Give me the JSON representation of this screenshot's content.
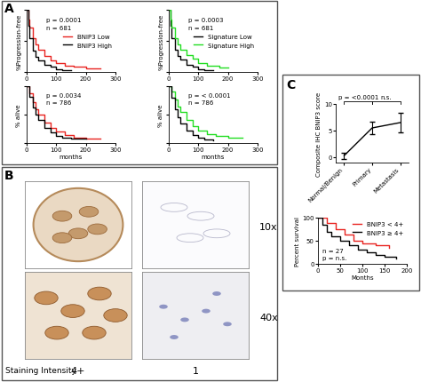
{
  "panel_labels": [
    "A",
    "B",
    "C"
  ],
  "images": {
    "magnifications": [
      "10x",
      "40x"
    ],
    "staining_label": "Staining Intensity",
    "intensities": [
      "4+",
      "1"
    ]
  },
  "chart_data": [
    {
      "type": "line",
      "ylabel": "%Progression-free",
      "annotations": [
        "p = 0.0001",
        "n = 681"
      ],
      "xlim": [
        0,
        300
      ],
      "xticks": [
        0,
        100,
        200,
        300
      ],
      "ylim": [
        0,
        100
      ],
      "yticks": [
        0,
        50,
        100
      ],
      "tick_labels": "x",
      "legend": "center right",
      "series": [
        {
          "name": "BNIP3 Low",
          "color": "#e8231f",
          "line_style": "steps",
          "x": [
            0,
            5,
            10,
            20,
            30,
            40,
            60,
            80,
            100,
            130,
            160,
            200,
            250
          ],
          "values": [
            100,
            85,
            72,
            55,
            44,
            36,
            26,
            19,
            14,
            10,
            8,
            6,
            6
          ]
        },
        {
          "name": "BNIP3 High",
          "color": "#000000",
          "line_style": "steps",
          "x": [
            0,
            5,
            10,
            20,
            30,
            40,
            60,
            80,
            100,
            120,
            150
          ],
          "values": [
            100,
            75,
            55,
            35,
            25,
            19,
            12,
            8,
            5,
            3,
            3
          ]
        }
      ]
    },
    {
      "type": "line",
      "ylabel": "%Progression-free",
      "annotations": [
        "p = 0.0003",
        "n = 681"
      ],
      "xlim": [
        0,
        300
      ],
      "xticks": [
        0,
        100,
        200,
        300
      ],
      "ylim": [
        0,
        100
      ],
      "yticks": [
        0,
        50,
        100
      ],
      "tick_labels": "x",
      "legend": "center right",
      "series": [
        {
          "name": "Signature Low",
          "color": "#000000",
          "line_style": "steps",
          "x": [
            0,
            5,
            10,
            20,
            30,
            40,
            60,
            80,
            100,
            120,
            150
          ],
          "values": [
            100,
            75,
            55,
            36,
            26,
            20,
            12,
            8,
            5,
            3,
            3
          ]
        },
        {
          "name": "Signature High",
          "color": "#22dd22",
          "line_style": "steps",
          "x": [
            0,
            5,
            10,
            20,
            30,
            40,
            60,
            80,
            100,
            130,
            170,
            200
          ],
          "values": [
            100,
            85,
            72,
            55,
            44,
            36,
            27,
            21,
            15,
            10,
            7,
            7
          ]
        }
      ]
    },
    {
      "type": "line",
      "ylabel": "% alive",
      "xlabel": "months",
      "annotations": [
        "p = 0.0034",
        "n = 786"
      ],
      "xlim": [
        0,
        300
      ],
      "xticks": [
        0,
        100,
        200,
        300
      ],
      "ylim": [
        0,
        100
      ],
      "yticks": [
        0,
        50,
        100
      ],
      "tick_labels": "x",
      "series": [
        {
          "color": "#e8231f",
          "line_style": "steps",
          "x": [
            0,
            10,
            20,
            30,
            40,
            60,
            80,
            100,
            130,
            160,
            200,
            250
          ],
          "values": [
            100,
            88,
            72,
            60,
            50,
            36,
            27,
            20,
            14,
            10,
            8,
            8
          ]
        },
        {
          "color": "#000000",
          "line_style": "steps",
          "x": [
            0,
            10,
            20,
            30,
            40,
            60,
            80,
            100,
            120,
            150,
            200
          ],
          "values": [
            100,
            82,
            63,
            50,
            40,
            27,
            19,
            13,
            10,
            8,
            8
          ]
        }
      ]
    },
    {
      "type": "line",
      "ylabel": "% alive",
      "xlabel": "months",
      "annotations": [
        "p = < 0.0001",
        "n = 786"
      ],
      "xlim": [
        0,
        300
      ],
      "xticks": [
        0,
        100,
        200,
        300
      ],
      "ylim": [
        0,
        100
      ],
      "yticks": [
        0,
        50,
        100
      ],
      "tick_labels": "x",
      "series": [
        {
          "color": "#22dd22",
          "line_style": "steps",
          "x": [
            0,
            10,
            20,
            30,
            40,
            60,
            80,
            100,
            130,
            160,
            200,
            250
          ],
          "values": [
            100,
            90,
            76,
            64,
            54,
            40,
            30,
            22,
            16,
            12,
            9,
            9
          ]
        },
        {
          "color": "#000000",
          "line_style": "steps",
          "x": [
            0,
            10,
            20,
            30,
            40,
            60,
            80,
            100,
            120,
            150
          ],
          "values": [
            100,
            80,
            60,
            45,
            35,
            22,
            14,
            9,
            6,
            5
          ]
        }
      ]
    },
    {
      "type": "errorbar",
      "ylabel": "Composite IHC BNIP3 score",
      "categories": [
        "Normal/Benign",
        "Primary",
        "Metastasis"
      ],
      "values": [
        0.3,
        5.5,
        6.5
      ],
      "errors": [
        0.6,
        1.2,
        1.8
      ],
      "color": "#000000",
      "annotations": [
        "p = <0.0001",
        "n.s."
      ],
      "ylim": [
        -1,
        10
      ],
      "yticks": [
        0,
        5,
        10
      ]
    },
    {
      "type": "line",
      "ylabel": "Percent survival",
      "xlabel": "Months",
      "annotations": [
        "n = 27",
        "p = n.s."
      ],
      "xlim": [
        0,
        200
      ],
      "xticks": [
        0,
        50,
        100,
        150,
        200
      ],
      "ylim": [
        0,
        100
      ],
      "yticks": [
        0,
        50,
        100
      ],
      "legend": "upper right",
      "series": [
        {
          "name": "BNIP3 < 4+",
          "color": "#e8231f",
          "line_style": "steps",
          "x": [
            0,
            20,
            40,
            60,
            80,
            100,
            130,
            160
          ],
          "values": [
            100,
            88,
            75,
            63,
            50,
            45,
            40,
            35
          ]
        },
        {
          "name": "BNIP3 ≥ 4+",
          "color": "#000000",
          "line_style": "steps",
          "x": [
            0,
            10,
            20,
            30,
            50,
            70,
            90,
            110,
            130,
            150,
            175
          ],
          "values": [
            100,
            85,
            70,
            60,
            50,
            40,
            30,
            25,
            20,
            15,
            12
          ]
        }
      ]
    }
  ]
}
